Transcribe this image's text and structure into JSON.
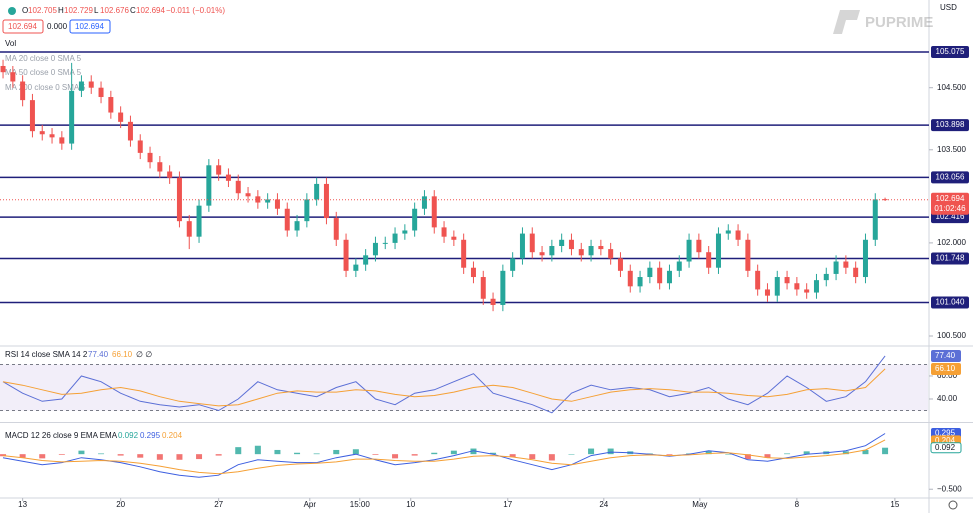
{
  "chart_data": {
    "type": "candlestick",
    "currency": "USD",
    "brand": "PUPRIME",
    "ohlc_labels": [
      "O",
      "H",
      "L",
      "C"
    ],
    "change": "−0.011 (−0.01%)",
    "spread": "0.000",
    "vol_label": "Vol",
    "ma_labels": [
      "MA 20 close 0 SMA 5",
      "MA 50 close 0 SMA 5",
      "MA 200 close 0 SMA 5"
    ],
    "up_color": "#26a69a",
    "down_color": "#ef5350",
    "xlim": [
      -0.31,
      94.38
    ],
    "xticks": [
      {
        "value": 2,
        "label": "13"
      },
      {
        "value": 12,
        "label": "20"
      },
      {
        "value": 22,
        "label": "27"
      },
      {
        "value": 31.3,
        "label": "Apr"
      },
      {
        "value": 36.4,
        "label": "15:00"
      },
      {
        "value": 41.6,
        "label": "10"
      },
      {
        "value": 51.5,
        "label": "17"
      },
      {
        "value": 61.3,
        "label": "24"
      },
      {
        "value": 71.1,
        "label": "May"
      },
      {
        "value": 81,
        "label": "8"
      },
      {
        "value": 91,
        "label": "15"
      }
    ],
    "ylim": [
      100.355,
      105.913
    ],
    "yticks": [
      {
        "value": 100.5,
        "label": "100.500"
      },
      {
        "value": 102,
        "label": "102.000"
      },
      {
        "value": 103.5,
        "label": "103.500"
      },
      {
        "value": 104.5,
        "label": "104.500"
      }
    ],
    "levels": [
      105.075,
      103.898,
      103.056,
      102.416,
      101.748,
      {
        "value": 101.04,
        "label": "101.040"
      }
    ],
    "level_color": "#1f1f7a",
    "countdown": "01:02:46",
    "ohlc": {
      "open": [
        104.85,
        104.75,
        104.6,
        104.3,
        103.8,
        103.75,
        103.7,
        103.6,
        104.45,
        104.6,
        104.5,
        104.35,
        104.1,
        103.95,
        103.65,
        103.45,
        103.3,
        103.15,
        103.05,
        102.35,
        102.1,
        102.6,
        103.25,
        103.1,
        103.0,
        102.8,
        102.75,
        102.65,
        102.7,
        102.55,
        102.2,
        102.35,
        102.7,
        102.95,
        102.4,
        102.05,
        101.55,
        101.65,
        101.8,
        102.0,
        102.0,
        102.15,
        102.2,
        102.55,
        102.75,
        102.25,
        102.1,
        102.05,
        101.6,
        101.45,
        101.1,
        101.0,
        101.55,
        101.75,
        102.15,
        101.85,
        101.8,
        101.95,
        102.05,
        101.9,
        101.8,
        101.95,
        101.9,
        101.75,
        101.55,
        101.3,
        101.45,
        101.6,
        101.35,
        101.55,
        101.7,
        102.05,
        101.85,
        101.6,
        102.15,
        102.2,
        102.05,
        101.55,
        101.25,
        101.15,
        101.45,
        101.35,
        101.25,
        101.2,
        101.4,
        101.5,
        101.7,
        101.6,
        101.45,
        102.05,
        102.705
      ],
      "high": [
        104.95,
        104.85,
        104.7,
        104.4,
        103.9,
        103.85,
        103.8,
        104.9,
        104.7,
        104.7,
        104.6,
        104.45,
        104.2,
        104.05,
        103.75,
        103.55,
        103.4,
        103.25,
        103.15,
        102.45,
        102.7,
        103.35,
        103.35,
        103.2,
        103.1,
        102.9,
        102.85,
        102.8,
        102.8,
        102.65,
        102.45,
        102.8,
        103.05,
        103.05,
        102.5,
        102.15,
        101.75,
        101.9,
        102.1,
        102.1,
        102.25,
        102.3,
        102.65,
        102.85,
        102.85,
        102.35,
        102.2,
        102.15,
        101.7,
        101.55,
        101.2,
        101.65,
        101.85,
        102.25,
        102.25,
        101.95,
        102.05,
        102.15,
        102.15,
        102.0,
        102.05,
        102.05,
        102.0,
        101.85,
        101.65,
        101.55,
        101.7,
        101.7,
        101.65,
        101.8,
        102.15,
        102.15,
        101.95,
        102.25,
        102.3,
        102.3,
        102.15,
        101.65,
        101.35,
        101.55,
        101.55,
        101.45,
        101.35,
        101.5,
        101.6,
        101.8,
        101.8,
        101.7,
        102.15,
        102.8,
        102.729
      ],
      "low": [
        104.65,
        104.5,
        104.2,
        103.7,
        103.65,
        103.6,
        103.5,
        103.5,
        104.35,
        104.4,
        104.25,
        104.0,
        103.85,
        103.55,
        103.35,
        103.2,
        103.05,
        102.95,
        102.25,
        101.9,
        102.0,
        102.5,
        103.0,
        102.9,
        102.7,
        102.65,
        102.55,
        102.55,
        102.45,
        102.1,
        102.1,
        102.25,
        102.6,
        102.3,
        101.95,
        101.45,
        101.45,
        101.55,
        101.7,
        101.9,
        101.9,
        102.05,
        102.1,
        102.45,
        102.15,
        102.0,
        101.95,
        101.5,
        101.35,
        101.0,
        100.9,
        100.9,
        101.45,
        101.65,
        101.75,
        101.7,
        101.7,
        101.85,
        101.8,
        101.7,
        101.7,
        101.8,
        101.65,
        101.45,
        101.2,
        101.2,
        101.35,
        101.25,
        101.25,
        101.45,
        101.6,
        101.75,
        101.5,
        101.5,
        102.05,
        101.95,
        101.45,
        101.15,
        101.05,
        101.05,
        101.25,
        101.15,
        101.1,
        101.1,
        101.3,
        101.4,
        101.5,
        101.35,
        101.35,
        101.95,
        102.676
      ],
      "close": [
        104.75,
        104.6,
        104.3,
        103.8,
        103.75,
        103.7,
        103.6,
        104.45,
        104.6,
        104.5,
        104.35,
        104.1,
        103.95,
        103.65,
        103.45,
        103.3,
        103.15,
        103.05,
        102.35,
        102.1,
        102.6,
        103.25,
        103.1,
        103.0,
        102.8,
        102.75,
        102.65,
        102.7,
        102.55,
        102.2,
        102.35,
        102.7,
        102.95,
        102.4,
        102.05,
        101.55,
        101.65,
        101.8,
        102.0,
        102.0,
        102.15,
        102.2,
        102.55,
        102.75,
        102.25,
        102.1,
        102.05,
        101.6,
        101.45,
        101.1,
        101.0,
        101.55,
        101.75,
        102.15,
        101.85,
        101.8,
        101.95,
        102.05,
        101.9,
        101.8,
        101.95,
        101.9,
        101.75,
        101.55,
        101.3,
        101.45,
        101.6,
        101.35,
        101.55,
        101.7,
        102.05,
        101.85,
        101.6,
        102.15,
        102.2,
        102.05,
        101.55,
        101.25,
        101.15,
        101.45,
        101.35,
        101.25,
        101.2,
        101.4,
        101.5,
        101.7,
        101.6,
        101.45,
        102.05,
        102.7,
        102.694
      ]
    },
    "rsi": {
      "title": "RSI 14 close SMA 14 2",
      "extra": "∅ ∅",
      "x": [
        0,
        2,
        4,
        6,
        8,
        10,
        12,
        14,
        16,
        18,
        20,
        22,
        24,
        26,
        28,
        30,
        32,
        34,
        36,
        38,
        40,
        42,
        44,
        46,
        48,
        50,
        52,
        54,
        56,
        58,
        60,
        62,
        64,
        66,
        68,
        70,
        72,
        74,
        76,
        78,
        80,
        82,
        84,
        86,
        88,
        90
      ],
      "ylim": [
        20,
        84.3
      ],
      "yticks": [
        {
          "value": 40,
          "label": "40.00"
        },
        {
          "value": 60,
          "label": "60.00"
        }
      ],
      "band": [
        30,
        70
      ],
      "series": [
        {
          "name": "RSI",
          "color": "#5b6fd6",
          "last_value_label": "77.40",
          "values": [
            55,
            45,
            38,
            40,
            60,
            55,
            45,
            38,
            35,
            33,
            35,
            30,
            40,
            55,
            48,
            45,
            42,
            50,
            55,
            40,
            35,
            45,
            48,
            55,
            62,
            45,
            40,
            35,
            28,
            45,
            52,
            48,
            50,
            48,
            42,
            45,
            50,
            40,
            35,
            45,
            60,
            50,
            38,
            42,
            55,
            77.4
          ]
        },
        {
          "name": "SMA",
          "color": "#f5a035",
          "last_value_label": "66.10",
          "values": [
            55,
            52,
            48,
            44,
            45,
            48,
            50,
            47,
            42,
            38,
            36,
            34,
            35,
            40,
            45,
            47,
            46,
            46,
            48,
            47,
            44,
            42,
            43,
            46,
            50,
            52,
            50,
            45,
            40,
            38,
            42,
            46,
            48,
            49,
            48,
            46,
            46,
            45,
            43,
            42,
            44,
            48,
            49,
            47,
            50,
            66.1
          ]
        }
      ]
    },
    "macd": {
      "title": "MACD 12 26 close 9 EMA EMA",
      "x": [
        0,
        2,
        4,
        6,
        8,
        10,
        12,
        14,
        16,
        18,
        20,
        22,
        24,
        26,
        28,
        30,
        32,
        34,
        36,
        38,
        40,
        42,
        44,
        46,
        48,
        50,
        52,
        54,
        56,
        58,
        60,
        62,
        64,
        66,
        68,
        70,
        72,
        74,
        76,
        78,
        80,
        82,
        84,
        86,
        88,
        90
      ],
      "ylim": [
        -0.625,
        0.43
      ],
      "yticks": [
        {
          "value": -0.5,
          "label": "−0.500"
        }
      ],
      "histogram": {
        "name": "Histogram",
        "up_color": "#26a69a",
        "down_color": "#ef5350",
        "values": [
          -0.03,
          -0.05,
          -0.06,
          -0.01,
          0.05,
          0.01,
          -0.02,
          -0.05,
          -0.08,
          -0.08,
          -0.07,
          -0.02,
          0.1,
          0.12,
          0.06,
          0.02,
          0.01,
          0.06,
          0.07,
          -0.01,
          -0.06,
          -0.02,
          0.02,
          0.05,
          0.08,
          0.02,
          -0.04,
          -0.07,
          -0.09,
          0.0,
          0.08,
          0.08,
          0.04,
          0.01,
          -0.01,
          0.01,
          0.04,
          0.0,
          -0.07,
          -0.05,
          0.01,
          0.04,
          0.04,
          0.04,
          0.06,
          0.092
        ]
      },
      "series": [
        {
          "name": "MACD",
          "color": "#3d5fe0",
          "values": [
            -0.05,
            -0.1,
            -0.15,
            -0.12,
            -0.05,
            -0.08,
            -0.12,
            -0.18,
            -0.25,
            -0.3,
            -0.33,
            -0.3,
            -0.15,
            -0.08,
            -0.1,
            -0.12,
            -0.12,
            -0.05,
            0.0,
            -0.08,
            -0.15,
            -0.12,
            -0.08,
            -0.02,
            0.05,
            0.0,
            -0.08,
            -0.15,
            -0.22,
            -0.15,
            -0.02,
            0.03,
            0.02,
            0.0,
            -0.03,
            0.0,
            0.05,
            0.02,
            -0.08,
            -0.1,
            -0.05,
            0.0,
            0.02,
            0.05,
            0.12,
            0.295
          ]
        },
        {
          "name": "Signal",
          "color": "#f5a035",
          "values": [
            -0.02,
            -0.05,
            -0.09,
            -0.11,
            -0.1,
            -0.09,
            -0.1,
            -0.13,
            -0.17,
            -0.22,
            -0.26,
            -0.28,
            -0.25,
            -0.2,
            -0.16,
            -0.14,
            -0.13,
            -0.11,
            -0.07,
            -0.07,
            -0.09,
            -0.1,
            -0.1,
            -0.07,
            -0.03,
            -0.02,
            -0.04,
            -0.08,
            -0.13,
            -0.15,
            -0.1,
            -0.05,
            -0.02,
            -0.01,
            -0.02,
            -0.01,
            0.01,
            0.02,
            -0.01,
            -0.05,
            -0.06,
            -0.04,
            -0.02,
            0.01,
            0.06,
            0.204
          ]
        }
      ]
    }
  }
}
